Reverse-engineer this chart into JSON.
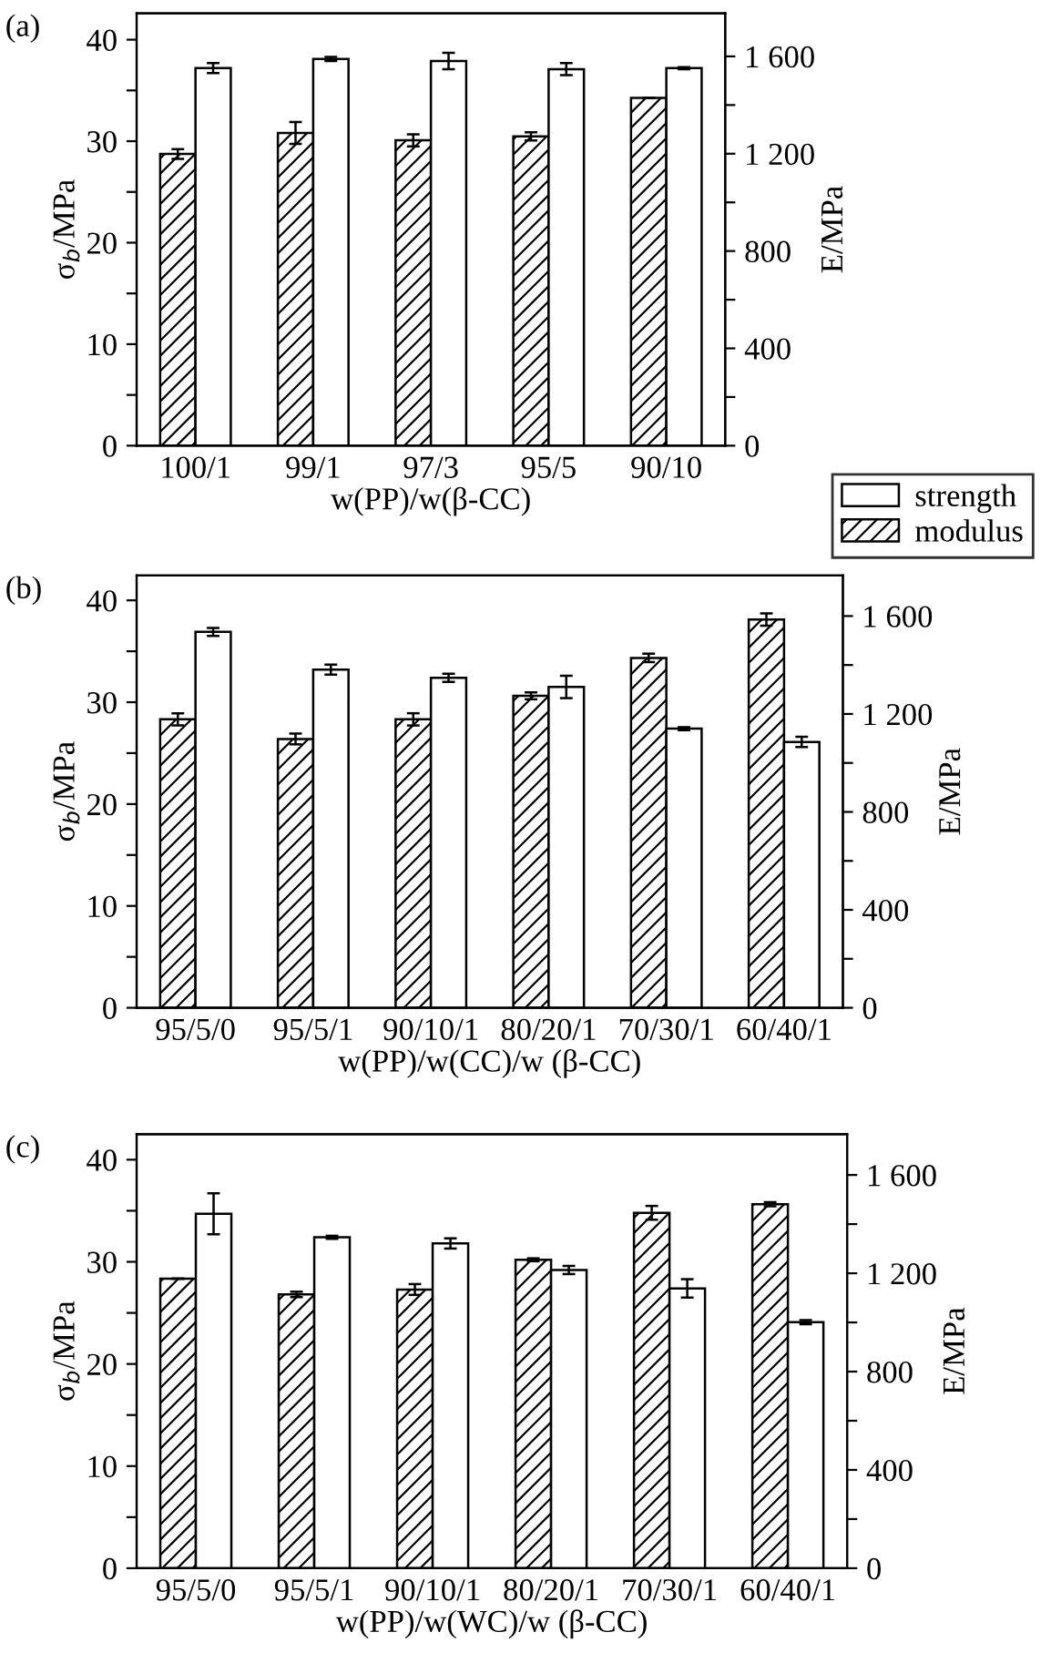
{
  "chart_data": [
    {
      "type": "bar",
      "title": "(a)",
      "xlabel": "w(PP)/w(β-CC)",
      "ylabel": "σ$_{b}$/MPa",
      "y2label": "E/MPa",
      "categories": [
        "100/1",
        "99/1",
        "97/3",
        "95/5",
        "90/10"
      ],
      "series": [
        {
          "name": "modulus",
          "color": "#000000",
          "axis": "y2",
          "values": [
            1199,
            1285,
            1255,
            1271,
            1429
          ],
          "errors": [
            20,
            45,
            25,
            17,
            null
          ]
        },
        {
          "name": "strength",
          "color": "#ffffff",
          "values": [
            37.2,
            38.1,
            37.9,
            37.1,
            37.2
          ],
          "errors": [
            0.5,
            0.2,
            0.8,
            0.6,
            0.1
          ]
        }
      ],
      "ylim": [
        0,
        42.6
      ],
      "yticks": [
        0,
        {
          "value": 5,
          "label": null
        },
        10,
        {
          "value": 15,
          "label": null
        },
        20,
        {
          "value": 25,
          "label": null
        },
        30,
        {
          "value": 35,
          "label": null
        },
        40
      ],
      "y2lim": [
        0,
        1777
      ],
      "y2ticks": [
        0,
        {
          "value": 200,
          "label": null
        },
        400,
        {
          "value": 600,
          "label": null
        },
        800,
        {
          "value": 1000,
          "label": null
        },
        {
          "value": 1200,
          "label": "1 200"
        },
        {
          "value": 1400,
          "label": null
        },
        {
          "value": 1600,
          "label": "1 600"
        }
      ],
      "legend": "bottom right"
    },
    {
      "type": "bar",
      "title": "(b)",
      "xlabel": "w(PP)/w(CC)/w (β-CC)",
      "ylabel": "σ$_{b}$/MPa",
      "y2label": "E/MPa",
      "categories": [
        "95/5/0",
        "95/5/1",
        "90/10/1",
        "80/20/1",
        "70/30/1",
        "60/40/1"
      ],
      "series": [
        {
          "color": "#000000",
          "axis": "y2",
          "values": [
            1178,
            1098,
            1178,
            1274,
            1429,
            1586
          ],
          "errors": [
            25,
            22,
            25,
            14,
            17,
            25
          ]
        },
        {
          "color": "#ffffff",
          "values": [
            36.9,
            33.2,
            32.4,
            31.5,
            27.4,
            26.1
          ],
          "errors": [
            0.4,
            0.5,
            0.4,
            1.1,
            0.15,
            0.5
          ]
        }
      ],
      "ylim": [
        0,
        42.45
      ],
      "yticks": [
        0,
        {
          "value": 5,
          "label": null
        },
        10,
        {
          "value": 15,
          "label": null
        },
        20,
        {
          "value": 25,
          "label": null
        },
        30,
        {
          "value": 35,
          "label": null
        },
        40
      ],
      "y2lim": [
        0,
        1766
      ],
      "y2ticks": [
        0,
        {
          "value": 200,
          "label": null
        },
        400,
        {
          "value": 600,
          "label": null
        },
        800,
        {
          "value": 1000,
          "label": null
        },
        {
          "value": 1200,
          "label": "1 200"
        },
        {
          "value": 1400,
          "label": null
        },
        {
          "value": 1600,
          "label": "1 600"
        }
      ]
    },
    {
      "type": "bar",
      "title": "(c)",
      "xlabel": "w(PP)/w(WC)/w (β-CC)",
      "ylabel": "σ$_{b}$/MPa",
      "y2label": "E/MPa",
      "categories": [
        "95/5/0",
        "95/5/1",
        "90/10/1",
        "80/20/1",
        "70/30/1",
        "60/40/1"
      ],
      "series": [
        {
          "color": "#000000",
          "axis": "y2",
          "values": [
            1178,
            1114,
            1134,
            1255,
            1446,
            1481
          ],
          "errors": [
            null,
            11,
            22,
            6,
            28,
            8
          ]
        },
        {
          "color": "#ffffff",
          "values": [
            34.7,
            32.4,
            31.8,
            29.2,
            27.4,
            24.1
          ],
          "errors": [
            2.0,
            0.15,
            0.5,
            0.4,
            0.9,
            0.2
          ]
        }
      ],
      "ylim": [
        0,
        42.5
      ],
      "yticks": [
        0,
        {
          "value": 5,
          "label": null
        },
        10,
        {
          "value": 15,
          "label": null
        },
        20,
        {
          "value": 25,
          "label": null
        },
        30,
        {
          "value": 35,
          "label": null
        },
        40
      ],
      "y2lim": [
        0,
        1766
      ],
      "y2ticks": [
        0,
        {
          "value": 200,
          "label": null
        },
        400,
        {
          "value": 600,
          "label": null
        },
        800,
        {
          "value": 1000,
          "label": null
        },
        {
          "value": 1200,
          "label": "1 200"
        },
        {
          "value": 1400,
          "label": null
        },
        {
          "value": 1600,
          "label": "1 600"
        }
      ]
    }
  ]
}
